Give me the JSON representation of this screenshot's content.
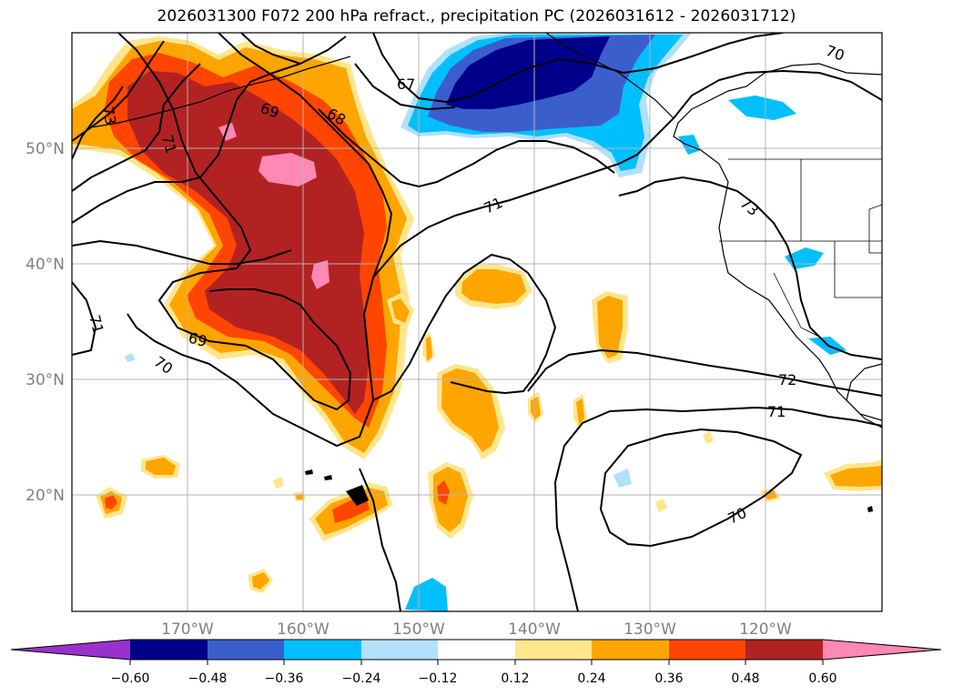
{
  "title": "2026031300 F072 200 hPa refract., precipitation PC (2026031612 - 2026031712)",
  "map": {
    "lon_range": [
      180,
      110
    ],
    "lat_range": [
      10,
      60
    ],
    "lon_ticks": [
      {
        "value": 170,
        "label": "170°W"
      },
      {
        "value": 160,
        "label": "160°W"
      },
      {
        "value": 150,
        "label": "150°W"
      },
      {
        "value": 140,
        "label": "140°W"
      },
      {
        "value": 130,
        "label": "130°W"
      },
      {
        "value": 120,
        "label": "120°W"
      }
    ],
    "lat_ticks": [
      {
        "value": 50,
        "label": "50°N"
      },
      {
        "value": 40,
        "label": "40°N"
      },
      {
        "value": 30,
        "label": "30°N"
      },
      {
        "value": 20,
        "label": "20°N"
      }
    ],
    "contour_labels": [
      "73",
      "71",
      "69",
      "68",
      "67",
      "70",
      "71",
      "73",
      "71",
      "69",
      "70",
      "72",
      "71",
      "70"
    ]
  },
  "colorbar": {
    "ticks": [
      "−0.60",
      "−0.48",
      "−0.36",
      "−0.24",
      "−0.12",
      "0.12",
      "0.24",
      "0.36",
      "0.48",
      "0.60"
    ],
    "colors": [
      "#9932cc",
      "#00008b",
      "#3a5fcd",
      "#00bfff",
      "#b0e0fa",
      "#ffffff",
      "#ffe68c",
      "#ffa500",
      "#ff4500",
      "#b22222",
      "#ff88b4"
    ]
  }
}
